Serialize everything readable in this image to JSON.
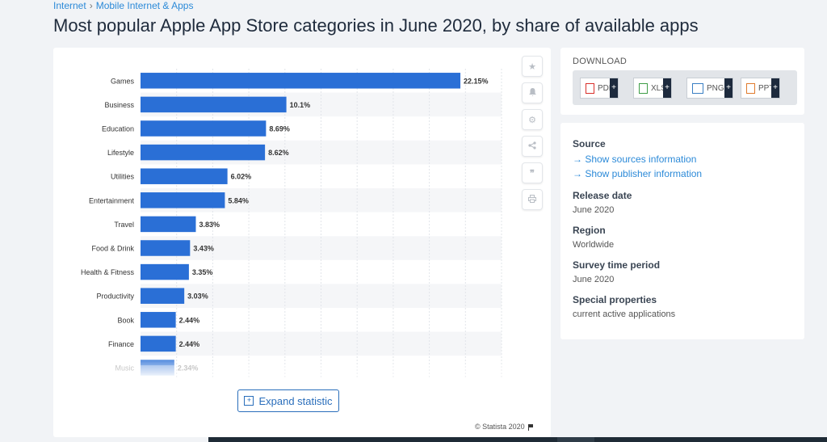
{
  "breadcrumb": {
    "items": [
      "Internet",
      "Mobile Internet & Apps"
    ],
    "sep": "›"
  },
  "title": "Most popular Apple App Store categories in June 2020, by share of available apps",
  "chart_data": {
    "type": "bar",
    "orientation": "horizontal",
    "categories": [
      "Games",
      "Business",
      "Education",
      "Lifestyle",
      "Utilities",
      "Entertainment",
      "Travel",
      "Food & Drink",
      "Health & Fitness",
      "Productivity",
      "Book",
      "Finance",
      "Music"
    ],
    "values": [
      22.15,
      10.1,
      8.69,
      8.62,
      6.02,
      5.84,
      3.83,
      3.43,
      3.35,
      3.03,
      2.44,
      2.44,
      2.34
    ],
    "value_labels": [
      "22.15%",
      "10.1%",
      "8.69%",
      "8.62%",
      "6.02%",
      "5.84%",
      "3.83%",
      "3.43%",
      "3.35%",
      "3.03%",
      "2.44%",
      "2.44%",
      "2.34%"
    ],
    "xlim": [
      0,
      25
    ],
    "bar_color": "#2a6fd6",
    "grid": true,
    "legend": "none"
  },
  "tools": [
    "star-icon",
    "bell-icon",
    "gear-icon",
    "share-icon",
    "quote-icon",
    "print-icon"
  ],
  "expand_label": "Expand statistic",
  "copyright": "© Statista 2020",
  "download": {
    "title": "DOWNLOAD",
    "buttons": [
      {
        "label": "PDF",
        "color": "#d9302b"
      },
      {
        "label": "XLS",
        "color": "#3f9e47"
      },
      {
        "label": "PNG",
        "color": "#3a7fc4"
      },
      {
        "label": "PPT",
        "color": "#e07b2d"
      }
    ],
    "plus": "+"
  },
  "info": {
    "source_h": "Source",
    "source_link1": "→ Show sources information",
    "source_link2": "→ Show publisher information",
    "release_h": "Release date",
    "release_v": "June 2020",
    "region_h": "Region",
    "region_v": "Worldwide",
    "survey_h": "Survey time period",
    "survey_v": "June 2020",
    "special_h": "Special properties",
    "special_v": "current active applications"
  }
}
